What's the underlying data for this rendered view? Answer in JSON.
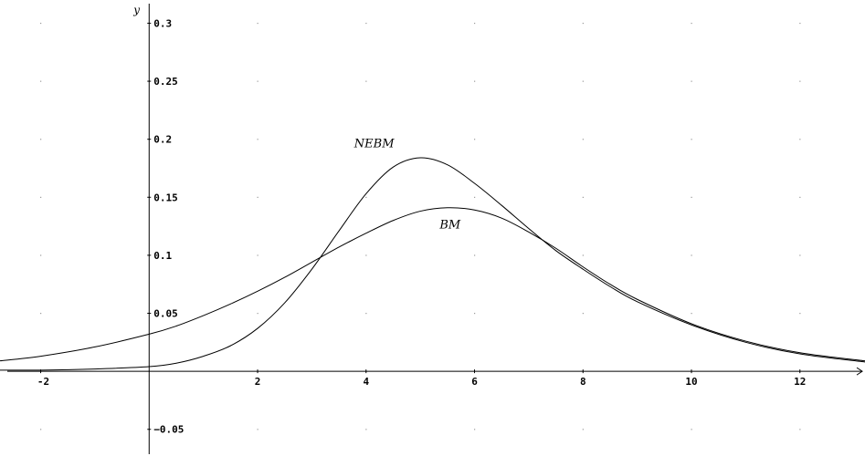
{
  "chart_data": {
    "type": "line",
    "xlabel": "",
    "ylabel": "y",
    "xlim": [
      -2.75,
      13.2
    ],
    "ylim": [
      -0.073,
      0.32
    ],
    "grid": "dotted",
    "x_ticks": [
      -2,
      2,
      4,
      6,
      8,
      10,
      12
    ],
    "x_tick_labels": [
      "-2",
      "2",
      "4",
      "6",
      "8",
      "10",
      "12"
    ],
    "y_ticks": [
      -0.05,
      0.05,
      0.1,
      0.15,
      0.2,
      0.25,
      0.3
    ],
    "y_tick_labels": [
      "−0.05",
      "0.05",
      "0.1",
      "0.15",
      "0.2",
      "0.25",
      "0.3"
    ],
    "series": [
      {
        "name": "NEBM",
        "x": [
          -2.75,
          -2,
          -1,
          0,
          0.5,
          1,
          1.5,
          2,
          2.5,
          3,
          3.5,
          4,
          4.5,
          5,
          5.5,
          6,
          6.5,
          7,
          7.5,
          8,
          8.5,
          9,
          10,
          11,
          12,
          13.2
        ],
        "y": [
          0.001,
          0.001,
          0.002,
          0.004,
          0.007,
          0.013,
          0.022,
          0.037,
          0.059,
          0.088,
          0.121,
          0.153,
          0.176,
          0.184,
          0.178,
          0.162,
          0.143,
          0.123,
          0.104,
          0.088,
          0.073,
          0.06,
          0.04,
          0.025,
          0.015,
          0.008
        ]
      },
      {
        "name": "BM",
        "x": [
          -2.75,
          -2,
          -1,
          0,
          0.5,
          1,
          1.5,
          2,
          2.5,
          3,
          3.5,
          4,
          4.5,
          5,
          5.5,
          6,
          6.5,
          7,
          7.5,
          8,
          8.5,
          9,
          10,
          11,
          12,
          13.2
        ],
        "y": [
          0.009,
          0.013,
          0.021,
          0.032,
          0.039,
          0.048,
          0.058,
          0.069,
          0.081,
          0.094,
          0.107,
          0.119,
          0.13,
          0.138,
          0.141,
          0.139,
          0.132,
          0.12,
          0.106,
          0.09,
          0.075,
          0.062,
          0.041,
          0.026,
          0.016,
          0.009
        ]
      }
    ],
    "annotations": [
      {
        "text": "NEBM",
        "x": 4.15,
        "y": 0.193
      },
      {
        "text": "BM",
        "x": 5.55,
        "y": 0.123
      }
    ]
  }
}
